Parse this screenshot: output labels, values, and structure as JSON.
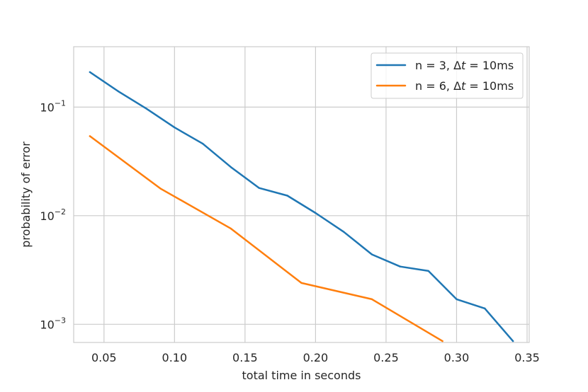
{
  "chart_data": {
    "type": "line",
    "title": "",
    "xlabel": "total time in seconds",
    "ylabel": "probability of error",
    "yscale": "log",
    "xlim": [
      0.0285,
      0.3515
    ],
    "ylim": [
      0.00068,
      0.36
    ],
    "x_ticks": [
      0.05,
      0.1,
      0.15,
      0.2,
      0.25,
      0.3,
      0.35
    ],
    "x_tick_labels": [
      "0.05",
      "0.10",
      "0.15",
      "0.20",
      "0.25",
      "0.30",
      "0.35"
    ],
    "y_ticks": [
      {
        "value": 0.1,
        "base": "10",
        "exp": "−1"
      },
      {
        "value": 0.01,
        "base": "10",
        "exp": "−2"
      },
      {
        "value": 0.001,
        "base": "10",
        "exp": "−3"
      }
    ],
    "grid": true,
    "legend_position": "top-right",
    "series": [
      {
        "name_prefix": "n = 3, Δ",
        "name_var": "t",
        "name_suffix": " = 10ms",
        "color": "#1f77b4",
        "x": [
          0.04,
          0.06,
          0.08,
          0.1,
          0.12,
          0.14,
          0.16,
          0.18,
          0.2,
          0.22,
          0.24,
          0.26,
          0.28,
          0.3,
          0.32,
          0.34
        ],
        "y": [
          0.21,
          0.14,
          0.097,
          0.065,
          0.046,
          0.028,
          0.018,
          0.0153,
          0.0106,
          0.0071,
          0.0044,
          0.0034,
          0.0031,
          0.0017,
          0.0014,
          0.0007
        ]
      },
      {
        "name_prefix": "n = 6, Δ",
        "name_var": "t",
        "name_suffix": " = 10ms",
        "color": "#ff7f0e",
        "x": [
          0.04,
          0.09,
          0.14,
          0.19,
          0.24,
          0.29
        ],
        "y": [
          0.054,
          0.0178,
          0.0076,
          0.0024,
          0.0017,
          0.0007
        ]
      }
    ]
  }
}
